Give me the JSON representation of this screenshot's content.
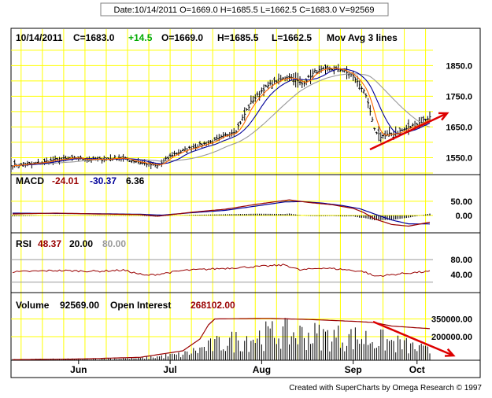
{
  "header": "Date:10/14/2011 O=1669.0 H=1685.5 L=1662.5 C=1683.0 V=92569",
  "footer": "Created with SuperCharts by Omega Research © 1997",
  "colors": {
    "background": "#ffffff",
    "grid": "#ffff00",
    "candle": "#000000",
    "ma_fast": "#ff6600",
    "ma_mid": "#000099",
    "ma_slow": "#999999",
    "macd_line": "#990000",
    "signal_line": "#000099",
    "rsi_line": "#990000",
    "volume_bar": "#000000",
    "open_interest": "#990000",
    "green": "#00aa00",
    "annotation_arrow": "#dd0000",
    "rsi_bounds": "#999999"
  },
  "price_panel": {
    "date": "10/14/2011",
    "close": "C=1683.0",
    "change": "+14.5",
    "open": "O=1669.0",
    "high": "H=1685.5",
    "low": "L=1662.5",
    "study": "Mov Avg 3 lines"
  },
  "macd_panel": {
    "label": "MACD",
    "macd": "-24.01",
    "signal": "-30.37",
    "hist": "6.36"
  },
  "rsi_panel": {
    "label": "RSI",
    "value": "48.37",
    "lower": "20.00",
    "upper": "80.00"
  },
  "volume_panel": {
    "label": "Volume",
    "volume": "92569.00",
    "oi_label": "Open Interest",
    "oi_value": "268102.00"
  },
  "chart_data": [
    {
      "type": "candlestick",
      "title": "",
      "x_labels": [
        "Jun",
        "Jul",
        "Aug",
        "Sep",
        "Oct"
      ],
      "y_ticks": [
        1550.0,
        1650.0,
        1750.0,
        1850.0
      ],
      "ylim": [
        1505,
        1915
      ],
      "grid": true,
      "price_keypoints": [
        [
          0,
          1525
        ],
        [
          10,
          1530
        ],
        [
          20,
          1542
        ],
        [
          30,
          1548
        ],
        [
          40,
          1543
        ],
        [
          50,
          1550
        ],
        [
          60,
          1535
        ],
        [
          68,
          1522
        ],
        [
          75,
          1560
        ],
        [
          85,
          1585
        ],
        [
          95,
          1605
        ],
        [
          105,
          1640
        ],
        [
          112,
          1730
        ],
        [
          118,
          1775
        ],
        [
          124,
          1800
        ],
        [
          130,
          1815
        ],
        [
          136,
          1790
        ],
        [
          142,
          1830
        ],
        [
          148,
          1840
        ],
        [
          154,
          1838
        ],
        [
          160,
          1815
        ],
        [
          165,
          1770
        ],
        [
          168,
          1700
        ],
        [
          170,
          1640
        ],
        [
          173,
          1620
        ],
        [
          180,
          1630
        ],
        [
          190,
          1660
        ],
        [
          196,
          1683
        ]
      ],
      "moving_averages": [
        "fast",
        "medium",
        "slow"
      ]
    },
    {
      "type": "line",
      "title": "MACD",
      "y_ticks": [
        0.0,
        50.0
      ],
      "ylim": [
        -45,
        100
      ],
      "series": [
        {
          "name": "MACD",
          "keypoints": [
            [
              0,
              5
            ],
            [
              20,
              8
            ],
            [
              40,
              5
            ],
            [
              60,
              3
            ],
            [
              68,
              -3
            ],
            [
              85,
              12
            ],
            [
              100,
              22
            ],
            [
              115,
              40
            ],
            [
              125,
              50
            ],
            [
              130,
              55
            ],
            [
              140,
              45
            ],
            [
              150,
              38
            ],
            [
              160,
              25
            ],
            [
              165,
              10
            ],
            [
              170,
              -12
            ],
            [
              178,
              -32
            ],
            [
              186,
              -38
            ],
            [
              196,
              -24
            ]
          ]
        },
        {
          "name": "Signal",
          "keypoints": [
            [
              0,
              8
            ],
            [
              20,
              7
            ],
            [
              40,
              6
            ],
            [
              60,
              4
            ],
            [
              70,
              1
            ],
            [
              85,
              10
            ],
            [
              100,
              18
            ],
            [
              115,
              34
            ],
            [
              128,
              48
            ],
            [
              136,
              49
            ],
            [
              145,
              44
            ],
            [
              155,
              35
            ],
            [
              163,
              24
            ],
            [
              170,
              5
            ],
            [
              178,
              -16
            ],
            [
              186,
              -30
            ],
            [
              196,
              -30.37
            ]
          ]
        }
      ],
      "histogram": "MACD minus Signal"
    },
    {
      "type": "line",
      "title": "RSI",
      "y_ticks": [
        40.0,
        80.0
      ],
      "ylim": [
        5,
        105
      ],
      "bounds": [
        20.0,
        80.0
      ],
      "keypoints": [
        [
          0,
          47
        ],
        [
          20,
          51
        ],
        [
          40,
          49
        ],
        [
          52,
          52
        ],
        [
          58,
          44
        ],
        [
          62,
          38
        ],
        [
          68,
          41
        ],
        [
          80,
          51
        ],
        [
          100,
          57
        ],
        [
          120,
          63
        ],
        [
          128,
          66
        ],
        [
          135,
          52
        ],
        [
          145,
          58
        ],
        [
          155,
          54
        ],
        [
          165,
          48
        ],
        [
          170,
          36
        ],
        [
          175,
          38
        ],
        [
          185,
          44
        ],
        [
          196,
          48.37
        ]
      ]
    },
    {
      "type": "bar",
      "title": "Volume",
      "y_ticks": [
        200000.0,
        350000.0
      ],
      "ylim": [
        0,
        420000
      ],
      "volume_keypoints": [
        [
          0,
          8000
        ],
        [
          40,
          15000
        ],
        [
          60,
          22000
        ],
        [
          80,
          60000
        ],
        [
          95,
          160000
        ],
        [
          110,
          230000
        ],
        [
          125,
          280000
        ],
        [
          140,
          260000
        ],
        [
          155,
          240000
        ],
        [
          165,
          230000
        ],
        [
          175,
          200000
        ],
        [
          185,
          150000
        ],
        [
          196,
          92569
        ]
      ],
      "open_interest_keypoints": [
        [
          0,
          5000
        ],
        [
          30,
          10000
        ],
        [
          60,
          25000
        ],
        [
          80,
          80000
        ],
        [
          88,
          180000
        ],
        [
          92,
          300000
        ],
        [
          95,
          350000
        ],
        [
          120,
          355000
        ],
        [
          140,
          345000
        ],
        [
          160,
          330000
        ],
        [
          170,
          320000
        ],
        [
          178,
          290000
        ],
        [
          190,
          275000
        ],
        [
          196,
          268102
        ]
      ]
    }
  ]
}
